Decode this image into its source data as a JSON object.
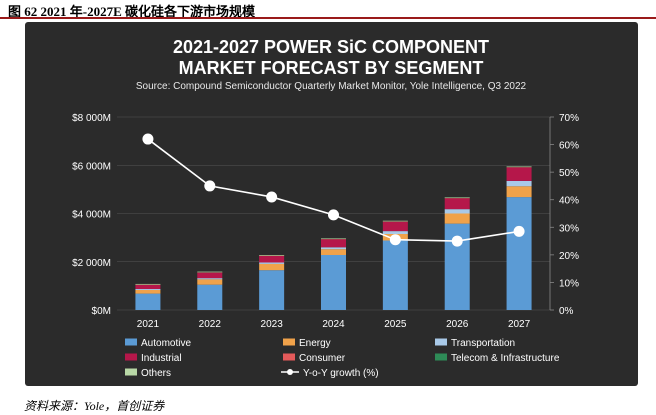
{
  "figure_caption": "图  62 2021 年-2027E 碳化硅各下游市场规模",
  "source_note": "资料来源：Yole，首创证券",
  "chart_data": {
    "type": "bar",
    "stacked": true,
    "title_line1": "2021-2027 POWER SiC COMPONENT",
    "title_line2": "MARKET FORECAST BY SEGMENT",
    "subtitle": "Source: Compound Semiconductor Quarterly Market Monitor, Yole Intelligence, Q3 2022",
    "categories": [
      "2021",
      "2022",
      "2023",
      "2024",
      "2025",
      "2026",
      "2027"
    ],
    "y_left": {
      "min": 0,
      "max": 8000,
      "ticks": [
        0,
        2000,
        4000,
        6000,
        8000
      ],
      "tick_labels": [
        "$0M",
        "$2 000M",
        "$4 000M",
        "$6 000M",
        "$8 000M"
      ]
    },
    "y_right": {
      "min": 0,
      "max": 70,
      "ticks": [
        0,
        10,
        20,
        30,
        40,
        50,
        60,
        70
      ],
      "tick_labels": [
        "0%",
        "10%",
        "20%",
        "30%",
        "40%",
        "50%",
        "60%",
        "70%"
      ]
    },
    "series": [
      {
        "name": "Automotive",
        "color": "#5b9bd5",
        "values": [
          680,
          1050,
          1650,
          2280,
          2880,
          3580,
          4680
        ]
      },
      {
        "name": "Energy",
        "color": "#f0a24a",
        "values": [
          150,
          220,
          260,
          240,
          270,
          420,
          450
        ]
      },
      {
        "name": "Transportation",
        "color": "#a9c9e8",
        "values": [
          40,
          50,
          60,
          80,
          120,
          180,
          220
        ]
      },
      {
        "name": "Industrial",
        "color": "#b5174a",
        "values": [
          170,
          230,
          270,
          330,
          390,
          450,
          560
        ]
      },
      {
        "name": "Consumer",
        "color": "#e45a5a",
        "values": [
          20,
          20,
          20,
          20,
          20,
          20,
          20
        ]
      },
      {
        "name": "Telecom & Infrastructure",
        "color": "#2e8b57",
        "values": [
          10,
          10,
          10,
          10,
          10,
          10,
          10
        ]
      },
      {
        "name": "Others",
        "color": "#b8d8a6",
        "values": [
          10,
          10,
          10,
          10,
          10,
          10,
          10
        ]
      }
    ],
    "line_series": {
      "name": "Y-o-Y growth (%)",
      "color": "#ffffff",
      "axis": "right",
      "values": [
        62,
        45,
        41,
        34.5,
        25.5,
        25,
        28.5
      ]
    },
    "legend": [
      {
        "name": "Automotive",
        "color": "#5b9bd5",
        "kind": "bar"
      },
      {
        "name": "Energy",
        "color": "#f0a24a",
        "kind": "bar"
      },
      {
        "name": "Transportation",
        "color": "#a9c9e8",
        "kind": "bar"
      },
      {
        "name": "Industrial",
        "color": "#b5174a",
        "kind": "bar"
      },
      {
        "name": "Consumer",
        "color": "#e45a5a",
        "kind": "bar"
      },
      {
        "name": "Telecom & Infrastructure",
        "color": "#2e8b57",
        "kind": "bar"
      },
      {
        "name": "Others",
        "color": "#b8d8a6",
        "kind": "bar"
      },
      {
        "name": "Y-o-Y growth (%)",
        "color": "#ffffff",
        "kind": "line"
      }
    ],
    "legend_placement": "bottom"
  }
}
